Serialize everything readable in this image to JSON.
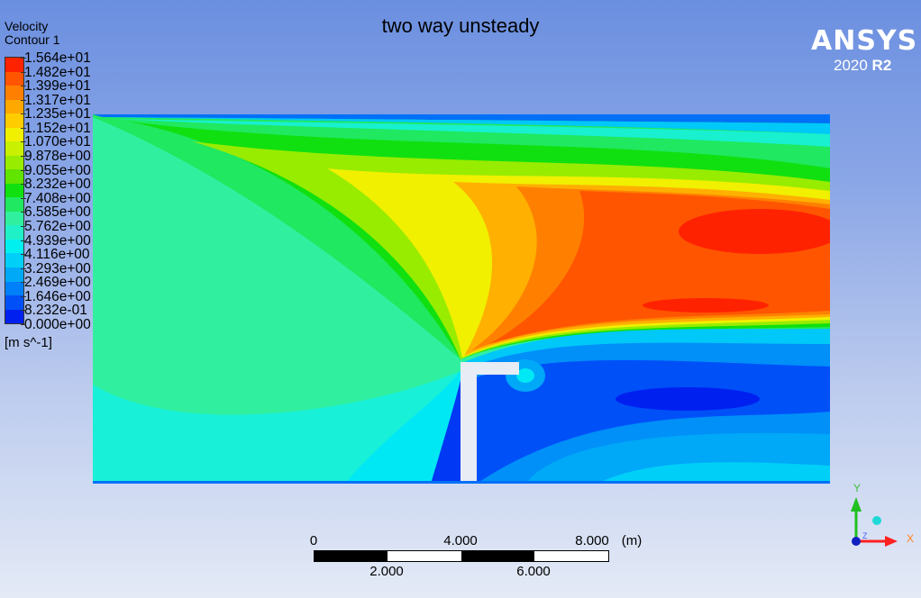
{
  "title": "two way unsteady",
  "legend": {
    "variable": "Velocity",
    "name": "Contour 1",
    "units": "[m s^-1]",
    "levels": [
      "1.564e+01",
      "1.482e+01",
      "1.399e+01",
      "1.317e+01",
      "1.235e+01",
      "1.152e+01",
      "1.070e+01",
      "9.878e+00",
      "9.055e+00",
      "8.232e+00",
      "7.408e+00",
      "6.585e+00",
      "5.762e+00",
      "4.939e+00",
      "4.116e+00",
      "3.293e+00",
      "2.469e+00",
      "1.646e+00",
      "8.232e-01",
      "0.000e+00"
    ],
    "colors_top_to_bottom": [
      "#ff2200",
      "#ff5500",
      "#ff8000",
      "#ffa800",
      "#ffcc00",
      "#f0f000",
      "#c8f000",
      "#98ec00",
      "#60e400",
      "#10e010",
      "#20e860",
      "#30f0a0",
      "#20f0c8",
      "#00f0f0",
      "#00d0f8",
      "#00a8f8",
      "#0080f8",
      "#0050f8",
      "#0020f0"
    ]
  },
  "branding": {
    "logo": "ANSYS",
    "version_prefix": "2020 ",
    "version_suffix": "R2"
  },
  "scale_bar": {
    "top_labels": [
      "0",
      "4.000",
      "8.000"
    ],
    "unit": "(m)",
    "bottom_labels": [
      "2.000",
      "6.000"
    ]
  },
  "axes_triad": {
    "x": "X",
    "y": "Y",
    "z": "Z",
    "colors": {
      "x": "#ff2020",
      "y": "#20c020",
      "z": "#2040ff"
    }
  }
}
